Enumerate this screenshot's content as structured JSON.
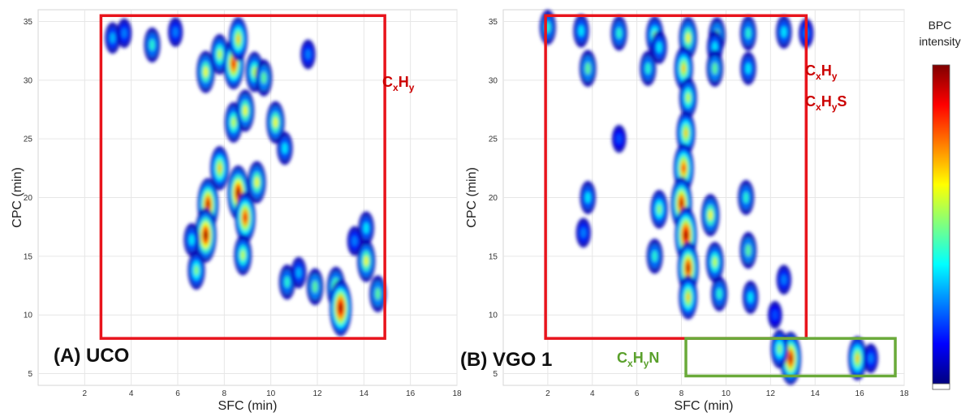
{
  "chart_data": [
    {
      "type": "heatmap",
      "panel_label": "(A) UCO",
      "xlabel": "SFC (min)",
      "ylabel": "CPC (min)",
      "xlim": [
        0,
        18
      ],
      "ylim": [
        4,
        36
      ],
      "xticks": [
        2,
        4,
        6,
        8,
        10,
        12,
        14,
        16,
        18
      ],
      "yticks": [
        5,
        10,
        15,
        20,
        25,
        30,
        35
      ],
      "grid": true,
      "regions": [
        {
          "label_parts": [
            [
              "C",
              "n"
            ],
            [
              "x",
              "s"
            ],
            [
              "H",
              "n"
            ],
            [
              "y",
              "s"
            ]
          ],
          "color": "#cc0000",
          "x_range": [
            2.7,
            14.9
          ],
          "y_range": [
            8,
            35.5
          ]
        }
      ],
      "blobs": [
        {
          "x": 3.2,
          "y": 33.6,
          "intensity": 0.25
        },
        {
          "x": 3.7,
          "y": 34.0,
          "intensity": 0.2
        },
        {
          "x": 4.9,
          "y": 33.0,
          "intensity": 0.35
        },
        {
          "x": 5.9,
          "y": 34.1,
          "intensity": 0.2
        },
        {
          "x": 7.2,
          "y": 30.7,
          "intensity": 0.55
        },
        {
          "x": 7.8,
          "y": 32.2,
          "intensity": 0.5
        },
        {
          "x": 8.4,
          "y": 31.4,
          "intensity": 0.8
        },
        {
          "x": 8.6,
          "y": 33.5,
          "intensity": 0.6
        },
        {
          "x": 9.3,
          "y": 30.7,
          "intensity": 0.5
        },
        {
          "x": 9.7,
          "y": 30.2,
          "intensity": 0.4
        },
        {
          "x": 11.6,
          "y": 32.2,
          "intensity": 0.2
        },
        {
          "x": 10.2,
          "y": 26.4,
          "intensity": 0.55
        },
        {
          "x": 10.6,
          "y": 24.2,
          "intensity": 0.3
        },
        {
          "x": 8.4,
          "y": 26.4,
          "intensity": 0.5
        },
        {
          "x": 8.9,
          "y": 27.4,
          "intensity": 0.55
        },
        {
          "x": 7.3,
          "y": 19.4,
          "intensity": 0.85
        },
        {
          "x": 7.2,
          "y": 16.8,
          "intensity": 0.9
        },
        {
          "x": 7.8,
          "y": 22.5,
          "intensity": 0.6
        },
        {
          "x": 8.6,
          "y": 20.4,
          "intensity": 0.9
        },
        {
          "x": 8.9,
          "y": 18.3,
          "intensity": 0.8
        },
        {
          "x": 8.8,
          "y": 15.1,
          "intensity": 0.5
        },
        {
          "x": 9.4,
          "y": 21.3,
          "intensity": 0.55
        },
        {
          "x": 6.8,
          "y": 13.8,
          "intensity": 0.45
        },
        {
          "x": 6.6,
          "y": 16.4,
          "intensity": 0.3
        },
        {
          "x": 10.7,
          "y": 12.8,
          "intensity": 0.35
        },
        {
          "x": 11.2,
          "y": 13.6,
          "intensity": 0.25
        },
        {
          "x": 11.9,
          "y": 12.4,
          "intensity": 0.4
        },
        {
          "x": 12.8,
          "y": 12.3,
          "intensity": 0.55
        },
        {
          "x": 13.0,
          "y": 10.6,
          "intensity": 0.95
        },
        {
          "x": 14.1,
          "y": 14.6,
          "intensity": 0.55
        },
        {
          "x": 14.6,
          "y": 11.8,
          "intensity": 0.4
        },
        {
          "x": 14.1,
          "y": 17.4,
          "intensity": 0.3
        },
        {
          "x": 13.6,
          "y": 16.3,
          "intensity": 0.2
        }
      ]
    },
    {
      "type": "heatmap",
      "panel_label": "(B) VGO 1",
      "xlabel": "SFC (min)",
      "ylabel": "CPC (min)",
      "xlim": [
        0,
        18
      ],
      "ylim": [
        4,
        36
      ],
      "xticks": [
        2,
        4,
        6,
        8,
        10,
        12,
        14,
        16,
        18
      ],
      "yticks": [
        5,
        10,
        15,
        20,
        25,
        30,
        35
      ],
      "grid": true,
      "regions": [
        {
          "label_parts": [
            [
              "C",
              "n"
            ],
            [
              "x",
              "s"
            ],
            [
              "H",
              "n"
            ],
            [
              "y",
              "s"
            ]
          ],
          "color": "#cc0000",
          "x_range": [
            1.9,
            13.6
          ],
          "y_range": [
            8,
            35.5
          ]
        },
        {
          "label_parts": [
            [
              "C",
              "n"
            ],
            [
              "x",
              "s"
            ],
            [
              "H",
              "n"
            ],
            [
              "y",
              "s"
            ],
            [
              "S",
              "n"
            ]
          ],
          "color": "#cc0000"
        },
        {
          "label_parts": [
            [
              "C",
              "n"
            ],
            [
              "x",
              "s"
            ],
            [
              "H",
              "n"
            ],
            [
              "y",
              "s"
            ],
            [
              "N",
              "n"
            ]
          ],
          "color": "#5aa02c",
          "x_range": [
            8.2,
            17.6
          ],
          "y_range": [
            4.8,
            8
          ]
        }
      ],
      "blobs": [
        {
          "x": 2.0,
          "y": 34.5,
          "intensity": 0.35
        },
        {
          "x": 3.5,
          "y": 34.2,
          "intensity": 0.3
        },
        {
          "x": 5.2,
          "y": 34.0,
          "intensity": 0.35
        },
        {
          "x": 6.8,
          "y": 33.8,
          "intensity": 0.45
        },
        {
          "x": 8.3,
          "y": 33.6,
          "intensity": 0.55
        },
        {
          "x": 9.6,
          "y": 33.8,
          "intensity": 0.4
        },
        {
          "x": 11.0,
          "y": 34.0,
          "intensity": 0.35
        },
        {
          "x": 12.6,
          "y": 34.1,
          "intensity": 0.3
        },
        {
          "x": 13.6,
          "y": 34.0,
          "intensity": 0.2
        },
        {
          "x": 7.0,
          "y": 32.8,
          "intensity": 0.3
        },
        {
          "x": 9.5,
          "y": 32.8,
          "intensity": 0.3
        },
        {
          "x": 3.8,
          "y": 31.0,
          "intensity": 0.4
        },
        {
          "x": 6.5,
          "y": 31.0,
          "intensity": 0.35
        },
        {
          "x": 8.1,
          "y": 31.0,
          "intensity": 0.6
        },
        {
          "x": 9.5,
          "y": 31.0,
          "intensity": 0.4
        },
        {
          "x": 11.0,
          "y": 31.0,
          "intensity": 0.3
        },
        {
          "x": 8.3,
          "y": 28.5,
          "intensity": 0.5
        },
        {
          "x": 8.2,
          "y": 25.5,
          "intensity": 0.6
        },
        {
          "x": 8.1,
          "y": 22.5,
          "intensity": 0.75
        },
        {
          "x": 8.0,
          "y": 19.5,
          "intensity": 0.85
        },
        {
          "x": 8.2,
          "y": 16.8,
          "intensity": 0.95
        },
        {
          "x": 8.3,
          "y": 14.0,
          "intensity": 0.85
        },
        {
          "x": 8.3,
          "y": 11.5,
          "intensity": 0.6
        },
        {
          "x": 7.0,
          "y": 19.0,
          "intensity": 0.45
        },
        {
          "x": 6.8,
          "y": 15.0,
          "intensity": 0.35
        },
        {
          "x": 9.3,
          "y": 18.5,
          "intensity": 0.55
        },
        {
          "x": 9.5,
          "y": 14.5,
          "intensity": 0.5
        },
        {
          "x": 9.7,
          "y": 11.8,
          "intensity": 0.35
        },
        {
          "x": 10.9,
          "y": 20.0,
          "intensity": 0.35
        },
        {
          "x": 11.0,
          "y": 15.5,
          "intensity": 0.4
        },
        {
          "x": 11.1,
          "y": 11.5,
          "intensity": 0.3
        },
        {
          "x": 3.8,
          "y": 20.0,
          "intensity": 0.3
        },
        {
          "x": 3.6,
          "y": 17.0,
          "intensity": 0.2
        },
        {
          "x": 5.2,
          "y": 25.0,
          "intensity": 0.15
        },
        {
          "x": 12.9,
          "y": 6.3,
          "intensity": 0.85
        },
        {
          "x": 12.4,
          "y": 7.1,
          "intensity": 0.45
        },
        {
          "x": 15.9,
          "y": 6.3,
          "intensity": 0.6
        },
        {
          "x": 16.5,
          "y": 6.3,
          "intensity": 0.2
        },
        {
          "x": 12.6,
          "y": 13.0,
          "intensity": 0.2
        },
        {
          "x": 12.2,
          "y": 10.0,
          "intensity": 0.15
        }
      ]
    }
  ],
  "colorbar": {
    "title_line1": "BPC",
    "title_line2": "intensity",
    "stops": [
      "#00007f",
      "#0000ff",
      "#007fff",
      "#00ffff",
      "#7fff7f",
      "#ffff00",
      "#ff7f00",
      "#ff0000",
      "#7f0000"
    ]
  }
}
